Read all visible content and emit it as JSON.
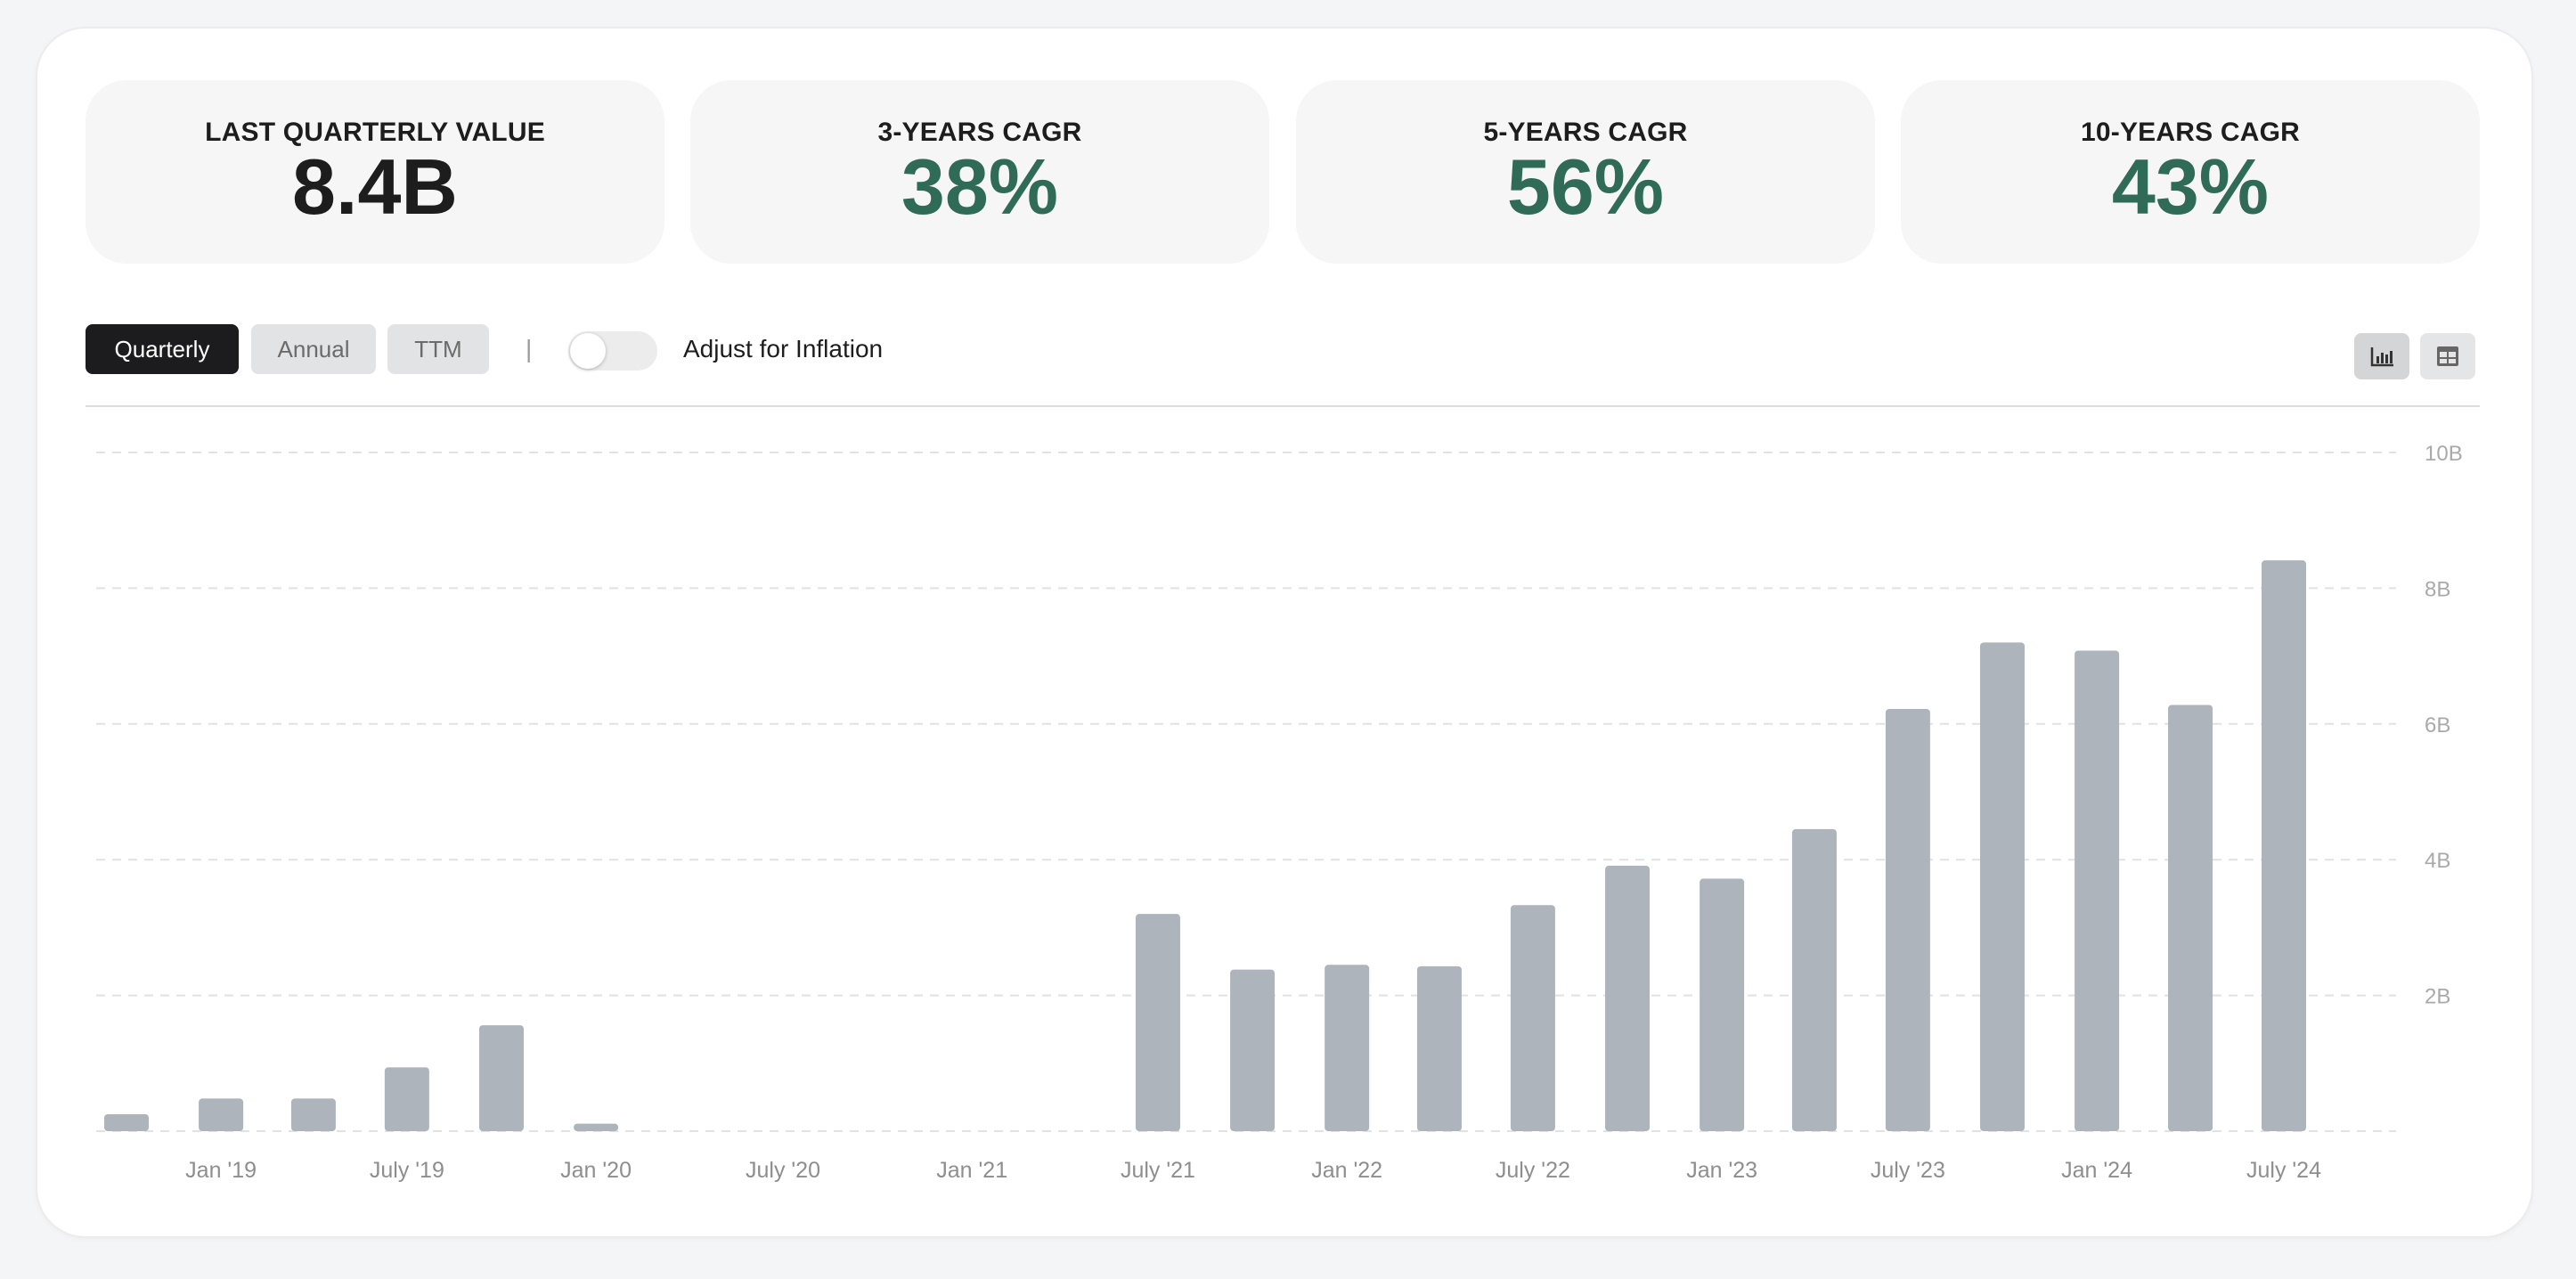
{
  "stats": [
    {
      "label": "LAST QUARTERLY VALUE",
      "value": "8.4B"
    },
    {
      "label": "3-YEARS CAGR",
      "value": "38%"
    },
    {
      "label": "5-YEARS CAGR",
      "value": "56%"
    },
    {
      "label": "10-YEARS CAGR",
      "value": "43%"
    }
  ],
  "colors": {
    "neutral_value": "#1d1d1d",
    "positive_value": "#2f6b57",
    "bar": "#adb4bc",
    "active_button": "#1c1c1e"
  },
  "period_buttons": [
    {
      "label": "Quarterly",
      "active": true
    },
    {
      "label": "Annual",
      "active": false
    },
    {
      "label": "TTM",
      "active": false
    }
  ],
  "separator": "|",
  "inflation_toggle": {
    "label": "Adjust for Inflation",
    "on": false
  },
  "view_buttons": [
    {
      "icon": "bar-chart-icon",
      "active": true
    },
    {
      "icon": "table-icon",
      "active": false
    }
  ],
  "chart_data": {
    "type": "bar",
    "x": [
      "2018-10-01",
      "2019-01-01",
      "2019-04-01",
      "2019-07-01",
      "2019-10-01",
      "2020-01-01",
      "2020-04-01",
      "2020-07-01",
      "2020-10-01",
      "2021-01-01",
      "2021-04-01",
      "2021-07-01",
      "2021-10-01",
      "2022-01-01",
      "2022-04-01",
      "2022-07-01",
      "2022-10-01",
      "2023-01-01",
      "2023-04-01",
      "2023-07-01",
      "2023-10-01",
      "2024-01-01",
      "2024-04-01",
      "2024-07-01"
    ],
    "values": [
      0.25,
      0.48,
      0.48,
      0.94,
      1.56,
      0.11,
      0,
      0,
      0,
      0,
      0,
      3.2,
      2.38,
      2.45,
      2.43,
      3.33,
      3.91,
      3.72,
      4.45,
      6.22,
      7.2,
      7.08,
      6.28,
      8.41
    ],
    "unit": "B",
    "y_ticks": [
      "10B",
      "8B",
      "6B",
      "4B",
      "2B"
    ],
    "y_tick_values": [
      10,
      8,
      6,
      4,
      2
    ],
    "ylim": [
      0,
      10
    ],
    "x_tick_labels": [
      "Jan '19",
      "July '19",
      "Jan '20",
      "July '20",
      "Jan '21",
      "July '21",
      "Jan '22",
      "July '22",
      "Jan '23",
      "July '23",
      "Jan '24",
      "July '24"
    ],
    "x_tick_dates": [
      "2019-01-01",
      "2019-07-01",
      "2020-01-01",
      "2020-07-01",
      "2021-01-01",
      "2021-07-01",
      "2022-01-01",
      "2022-07-01",
      "2023-01-01",
      "2023-07-01",
      "2024-01-01",
      "2024-07-01"
    ],
    "grid": "dashed-horizontal",
    "y_axis_position": "right"
  }
}
